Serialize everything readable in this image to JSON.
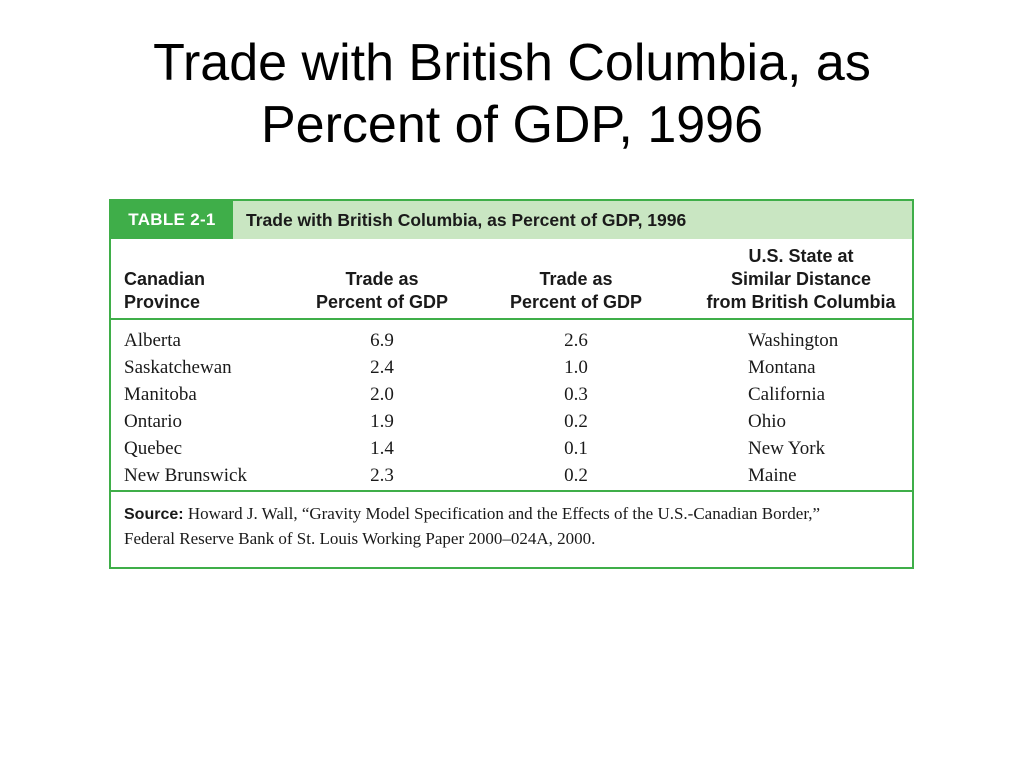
{
  "slide": {
    "title_line1": "Trade with British Columbia, as",
    "title_line2": "Percent of GDP, 1996"
  },
  "table": {
    "tag": "TABLE 2-1",
    "caption": "Trade with British Columbia, as Percent of GDP, 1996",
    "columns": {
      "province": [
        "Canadian",
        "Province"
      ],
      "trade_canada": [
        "Trade as",
        "Percent of GDP"
      ],
      "trade_us": [
        "Trade as",
        "Percent of GDP"
      ],
      "state": [
        "U.S. State at",
        "Similar Distance",
        "from British Columbia"
      ]
    },
    "rows": [
      {
        "province": "Alberta",
        "trade_canada": "6.9",
        "trade_us": "2.6",
        "state": "Washington"
      },
      {
        "province": "Saskatchewan",
        "trade_canada": "2.4",
        "trade_us": "1.0",
        "state": "Montana"
      },
      {
        "province": "Manitoba",
        "trade_canada": "2.0",
        "trade_us": "0.3",
        "state": "California"
      },
      {
        "province": "Ontario",
        "trade_canada": "1.9",
        "trade_us": "0.2",
        "state": "Ohio"
      },
      {
        "province": "Quebec",
        "trade_canada": "1.4",
        "trade_us": "0.1",
        "state": "New York"
      },
      {
        "province": "New Brunswick",
        "trade_canada": "2.3",
        "trade_us": "0.2",
        "state": "Maine"
      }
    ],
    "source": {
      "label": "Source:",
      "line1": " Howard J. Wall, “Gravity Model Specification and the Effects of the U.S.-Canadian Border,”",
      "line2": "Federal Reserve Bank of St. Louis Working Paper 2000–024A, 2000."
    }
  },
  "colors": {
    "accent_green": "#3fae49",
    "header_tint": "#c9e6c2"
  }
}
